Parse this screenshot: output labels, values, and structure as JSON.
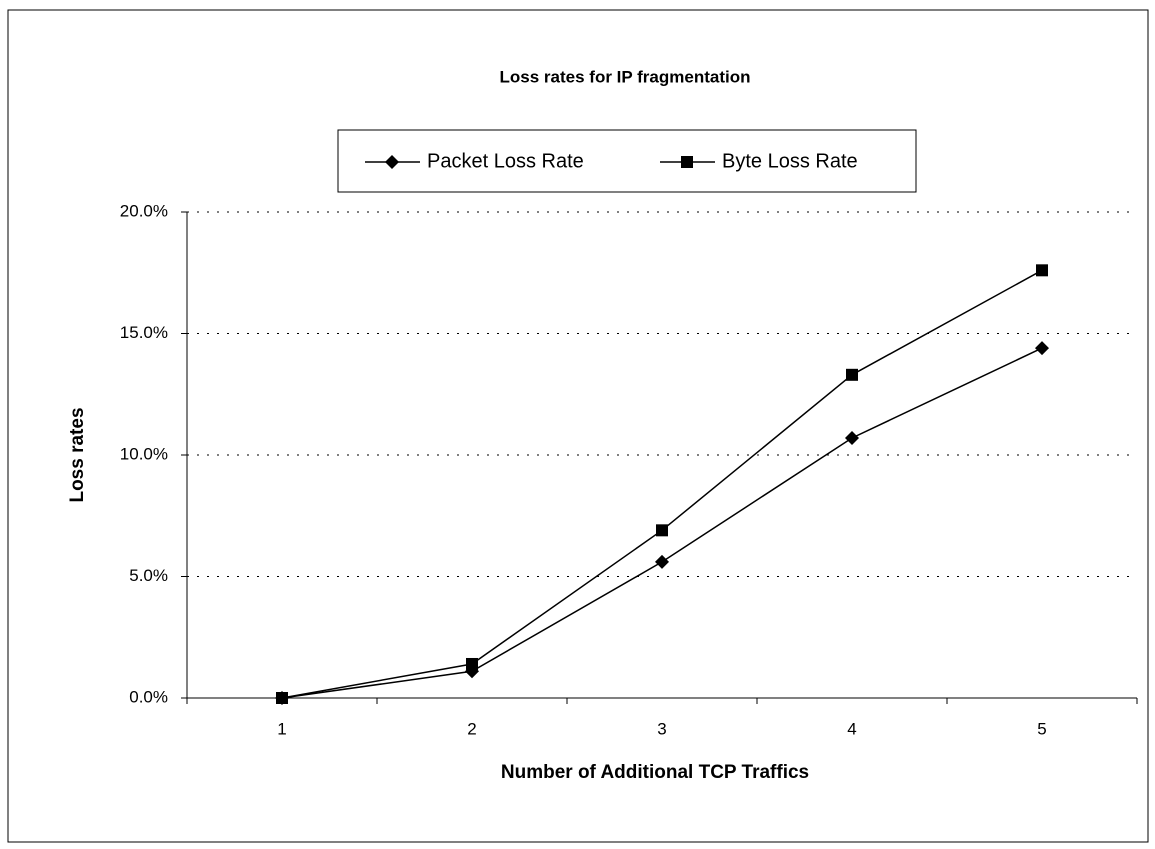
{
  "chart_data": {
    "type": "line",
    "title": "Loss rates for IP fragmentation",
    "x_label": "Number of Additional TCP Traffics",
    "y_label": "Loss rates",
    "categories": [
      "1",
      "2",
      "3",
      "4",
      "5"
    ],
    "series": [
      {
        "name": "Packet Loss Rate",
        "color": "#000000",
        "marker": "diamond",
        "values": [
          0,
          1.1,
          5.6,
          10.7,
          14.4
        ]
      },
      {
        "name": "Byte Loss Rate",
        "color": "#000000",
        "marker": "square",
        "values": [
          0,
          1.4,
          6.9,
          13.3,
          17.6
        ]
      }
    ],
    "ylim": [
      0,
      20
    ],
    "yticks": [
      {
        "value": 0,
        "label": "0.0%"
      },
      {
        "value": 5,
        "label": "5.0%"
      },
      {
        "value": 10,
        "label": "10.0%"
      },
      {
        "value": 15,
        "label": "15.0%"
      },
      {
        "value": 20,
        "label": "20.0%"
      }
    ],
    "grid": true,
    "legend": "top"
  }
}
